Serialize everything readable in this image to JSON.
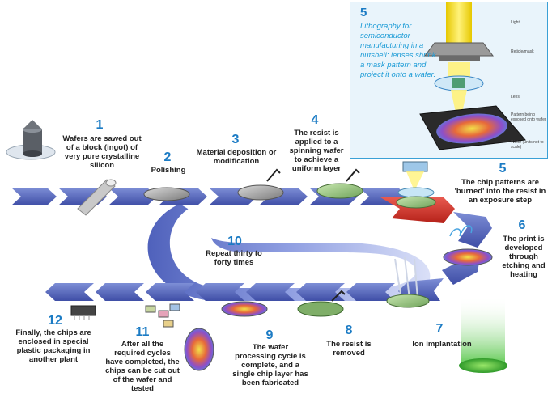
{
  "steps": [
    {
      "number": "1",
      "text": "Wafers are sawed out of a block (ingot) of very pure crystalline silicon"
    },
    {
      "number": "2",
      "text": "Polishing"
    },
    {
      "number": "3",
      "text": "Material deposition or modification"
    },
    {
      "number": "4",
      "text": "The resist is applied to a spinning wafer to achieve a uniform layer"
    },
    {
      "number": "5",
      "text": "The chip patterns are 'burned' into the resist in an exposure step"
    },
    {
      "number": "6",
      "text": "The print is developed through etching and heating"
    },
    {
      "number": "7",
      "text": "Ion implantation"
    },
    {
      "number": "8",
      "text": "The resist is removed"
    },
    {
      "number": "9",
      "text": "The wafer processing cycle is complete, and a single chip layer has been fabricated"
    },
    {
      "number": "10",
      "text": "Repeat thirty to forty times"
    },
    {
      "number": "11",
      "text": "After all the required cycles have completed, the chips can be cut out of the wafer and tested"
    },
    {
      "number": "12",
      "text": "Finally, the chips are enclosed in special plastic packaging in another plant"
    }
  ],
  "inset": {
    "number": "5",
    "text": "Lithography for semiconductor manufacturing in a nutshell: lenses shrink a mask pattern and project it onto a wafer.",
    "labels": {
      "light": "Light",
      "reticle": "Reticle/mask",
      "lens": "Lens",
      "pattern": "Pattern being exposed onto wafer",
      "wafer": "Wafer (units not to scale)"
    }
  },
  "colors": {
    "arrow_blue": "#5b6cc0",
    "arrow_red": "#d9342b",
    "number_blue": "#1b7bc4",
    "inset_bg": "#e9f4fb",
    "inset_border": "#3aa0d6"
  }
}
